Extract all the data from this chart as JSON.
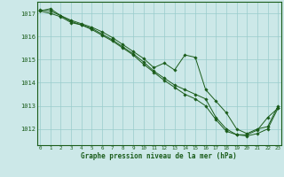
{
  "title": "Graphe pression niveau de la mer (hPa)",
  "bg_color": "#cce8e8",
  "grid_color": "#99cccc",
  "line_color": "#1a5c1a",
  "x_ticks": [
    0,
    1,
    2,
    3,
    4,
    5,
    6,
    7,
    8,
    9,
    10,
    11,
    12,
    13,
    14,
    15,
    16,
    17,
    18,
    19,
    20,
    21,
    22,
    23
  ],
  "y_ticks": [
    1012,
    1013,
    1014,
    1015,
    1016,
    1017
  ],
  "ylim": [
    1011.3,
    1017.5
  ],
  "xlim": [
    -0.3,
    23.3
  ],
  "series": [
    [
      1017.1,
      1017.2,
      1016.9,
      1016.7,
      1016.55,
      1016.4,
      1016.2,
      1015.95,
      1015.65,
      1015.35,
      1015.05,
      1014.65,
      1014.85,
      1014.55,
      1015.2,
      1015.1,
      1013.7,
      1013.2,
      1012.7,
      1012.0,
      1011.8,
      1012.0,
      1012.1,
      1013.0
    ],
    [
      1017.15,
      1017.1,
      1016.9,
      1016.65,
      1016.5,
      1016.35,
      1016.1,
      1015.85,
      1015.55,
      1015.25,
      1014.9,
      1014.5,
      1014.2,
      1013.9,
      1013.7,
      1013.5,
      1013.3,
      1012.5,
      1012.0,
      1011.75,
      1011.7,
      1011.8,
      1012.0,
      1012.9
    ],
    [
      1017.1,
      1017.0,
      1016.85,
      1016.6,
      1016.5,
      1016.3,
      1016.05,
      1015.8,
      1015.5,
      1015.2,
      1014.8,
      1014.45,
      1014.1,
      1013.8,
      1013.5,
      1013.3,
      1013.0,
      1012.4,
      1011.9,
      1011.75,
      1011.75,
      1011.95,
      1012.5,
      1012.9
    ]
  ]
}
